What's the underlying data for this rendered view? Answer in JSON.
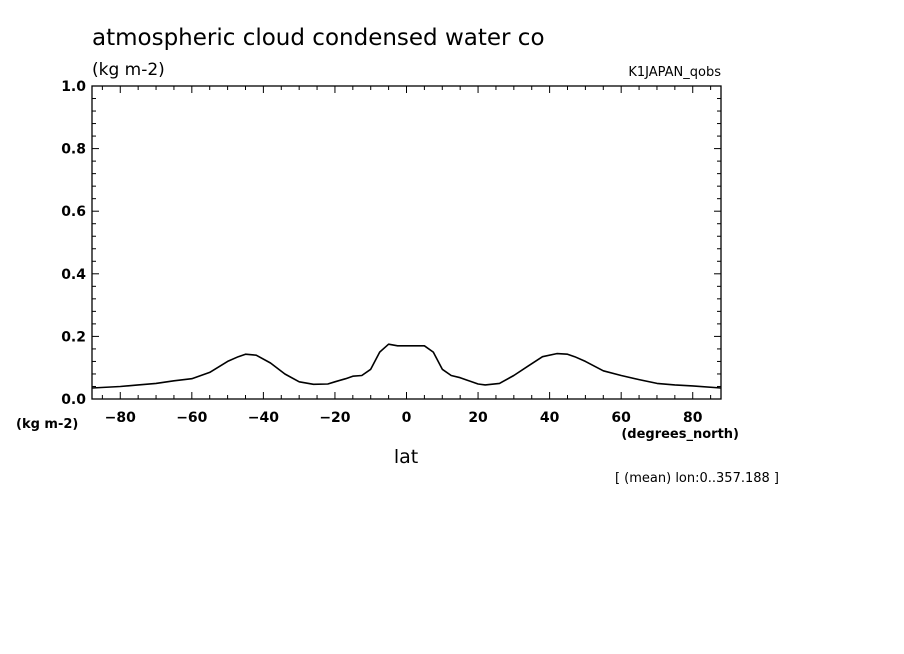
{
  "chart_data": {
    "type": "line",
    "title": "atmospheric cloud condensed water co",
    "subtitle": "(kg m-2)",
    "dataset_label": "K1JAPAN_qobs",
    "ylabel": "(kg m-2)",
    "xlabel": "lat",
    "x_units": "(degrees_north)",
    "footnote": "[ (mean) lon:0..357.188 ]",
    "xlim": [
      -87.9,
      87.9
    ],
    "ylim": [
      0.0,
      1.0
    ],
    "x_ticks": [
      -80,
      -60,
      -40,
      -20,
      0,
      20,
      40,
      60,
      80
    ],
    "x_tick_labels": [
      "-80",
      "-60",
      "-40",
      "-20",
      "0",
      "20",
      "40",
      "60",
      "80"
    ],
    "y_ticks": [
      0.0,
      0.2,
      0.4,
      0.6,
      0.8,
      1.0
    ],
    "y_tick_labels": [
      "0.0",
      "0.2",
      "0.4",
      "0.6",
      "0.8",
      "1.0"
    ],
    "series": [
      {
        "name": "K1JAPAN_qobs",
        "x": [
          -87.9,
          -80,
          -75,
          -70,
          -65,
          -60,
          -55,
          -50,
          -47,
          -45,
          -42,
          -38,
          -34,
          -30,
          -26,
          -22,
          -20,
          -17,
          -15,
          -12.5,
          -10,
          -7.5,
          -5,
          -2.5,
          0,
          2.5,
          5,
          7.5,
          10,
          12.5,
          15,
          17,
          20,
          22,
          26,
          30,
          34,
          38,
          42,
          45,
          47,
          50,
          55,
          60,
          65,
          70,
          75,
          80,
          87.9
        ],
        "y": [
          0.035,
          0.04,
          0.045,
          0.05,
          0.058,
          0.065,
          0.085,
          0.12,
          0.135,
          0.143,
          0.14,
          0.115,
          0.08,
          0.055,
          0.047,
          0.048,
          0.055,
          0.065,
          0.073,
          0.075,
          0.095,
          0.15,
          0.175,
          0.17,
          0.17,
          0.17,
          0.17,
          0.15,
          0.095,
          0.075,
          0.068,
          0.06,
          0.048,
          0.045,
          0.05,
          0.075,
          0.105,
          0.135,
          0.145,
          0.143,
          0.135,
          0.12,
          0.09,
          0.075,
          0.062,
          0.05,
          0.045,
          0.042,
          0.035
        ]
      }
    ]
  }
}
